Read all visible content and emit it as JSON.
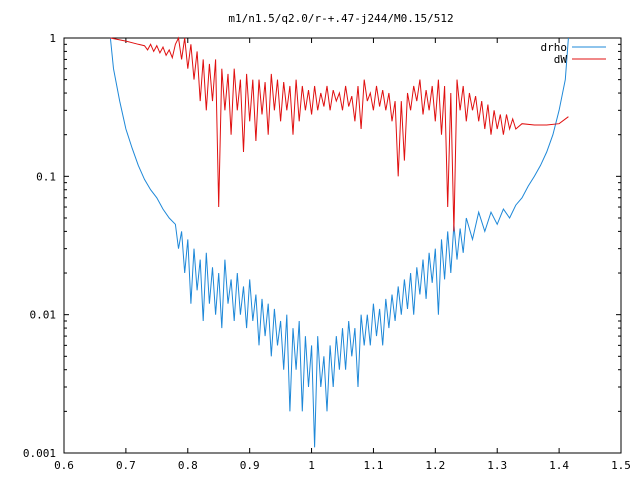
{
  "chart_data": {
    "type": "line",
    "title": "m1/n1.5/q2.0/r-+.47-j244/M0.15/512",
    "xlabel": "",
    "ylabel": "",
    "xlim": [
      0.6,
      1.5
    ],
    "ylim": [
      0.001,
      1
    ],
    "y_scale": "log",
    "grid": false,
    "legend_position": "top-right",
    "x_ticks": [
      "0.6",
      "0.7",
      "0.8",
      "0.9",
      "1",
      "1.1",
      "1.2",
      "1.3",
      "1.4",
      "1.5"
    ],
    "y_ticks": [
      "0.001",
      "0.01",
      "0.1",
      "1"
    ],
    "series": [
      {
        "name": "drho",
        "color": "#1e88d8",
        "points": [
          [
            0.675,
            1.0
          ],
          [
            0.68,
            0.6
          ],
          [
            0.69,
            0.35
          ],
          [
            0.7,
            0.22
          ],
          [
            0.71,
            0.16
          ],
          [
            0.72,
            0.12
          ],
          [
            0.73,
            0.095
          ],
          [
            0.74,
            0.08
          ],
          [
            0.75,
            0.07
          ],
          [
            0.76,
            0.058
          ],
          [
            0.77,
            0.05
          ],
          [
            0.78,
            0.045
          ],
          [
            0.785,
            0.03
          ],
          [
            0.79,
            0.04
          ],
          [
            0.795,
            0.02
          ],
          [
            0.8,
            0.035
          ],
          [
            0.805,
            0.012
          ],
          [
            0.81,
            0.03
          ],
          [
            0.815,
            0.015
          ],
          [
            0.82,
            0.025
          ],
          [
            0.825,
            0.009
          ],
          [
            0.83,
            0.028
          ],
          [
            0.835,
            0.012
          ],
          [
            0.84,
            0.022
          ],
          [
            0.845,
            0.01
          ],
          [
            0.85,
            0.02
          ],
          [
            0.855,
            0.008
          ],
          [
            0.86,
            0.025
          ],
          [
            0.865,
            0.012
          ],
          [
            0.87,
            0.018
          ],
          [
            0.875,
            0.009
          ],
          [
            0.88,
            0.02
          ],
          [
            0.885,
            0.01
          ],
          [
            0.89,
            0.016
          ],
          [
            0.895,
            0.008
          ],
          [
            0.9,
            0.018
          ],
          [
            0.905,
            0.009
          ],
          [
            0.91,
            0.014
          ],
          [
            0.915,
            0.006
          ],
          [
            0.92,
            0.013
          ],
          [
            0.925,
            0.007
          ],
          [
            0.93,
            0.012
          ],
          [
            0.935,
            0.005
          ],
          [
            0.94,
            0.011
          ],
          [
            0.945,
            0.006
          ],
          [
            0.95,
            0.009
          ],
          [
            0.955,
            0.004
          ],
          [
            0.96,
            0.01
          ],
          [
            0.965,
            0.002
          ],
          [
            0.97,
            0.008
          ],
          [
            0.975,
            0.004
          ],
          [
            0.98,
            0.009
          ],
          [
            0.985,
            0.002
          ],
          [
            0.99,
            0.007
          ],
          [
            0.995,
            0.003
          ],
          [
            1.0,
            0.006
          ],
          [
            1.005,
            0.0011
          ],
          [
            1.01,
            0.007
          ],
          [
            1.015,
            0.003
          ],
          [
            1.02,
            0.005
          ],
          [
            1.025,
            0.002
          ],
          [
            1.03,
            0.006
          ],
          [
            1.035,
            0.003
          ],
          [
            1.04,
            0.007
          ],
          [
            1.045,
            0.004
          ],
          [
            1.05,
            0.008
          ],
          [
            1.055,
            0.004
          ],
          [
            1.06,
            0.009
          ],
          [
            1.065,
            0.005
          ],
          [
            1.07,
            0.008
          ],
          [
            1.075,
            0.003
          ],
          [
            1.08,
            0.01
          ],
          [
            1.085,
            0.006
          ],
          [
            1.09,
            0.01
          ],
          [
            1.095,
            0.006
          ],
          [
            1.1,
            0.012
          ],
          [
            1.105,
            0.007
          ],
          [
            1.11,
            0.011
          ],
          [
            1.115,
            0.006
          ],
          [
            1.12,
            0.013
          ],
          [
            1.125,
            0.008
          ],
          [
            1.13,
            0.014
          ],
          [
            1.135,
            0.009
          ],
          [
            1.14,
            0.016
          ],
          [
            1.145,
            0.01
          ],
          [
            1.15,
            0.018
          ],
          [
            1.155,
            0.011
          ],
          [
            1.16,
            0.02
          ],
          [
            1.165,
            0.01
          ],
          [
            1.17,
            0.022
          ],
          [
            1.175,
            0.014
          ],
          [
            1.18,
            0.025
          ],
          [
            1.185,
            0.013
          ],
          [
            1.19,
            0.028
          ],
          [
            1.195,
            0.017
          ],
          [
            1.2,
            0.03
          ],
          [
            1.205,
            0.01
          ],
          [
            1.21,
            0.035
          ],
          [
            1.215,
            0.018
          ],
          [
            1.22,
            0.04
          ],
          [
            1.225,
            0.02
          ],
          [
            1.23,
            0.045
          ],
          [
            1.235,
            0.025
          ],
          [
            1.24,
            0.042
          ],
          [
            1.245,
            0.028
          ],
          [
            1.25,
            0.05
          ],
          [
            1.26,
            0.035
          ],
          [
            1.27,
            0.055
          ],
          [
            1.28,
            0.04
          ],
          [
            1.29,
            0.055
          ],
          [
            1.3,
            0.045
          ],
          [
            1.31,
            0.058
          ],
          [
            1.32,
            0.05
          ],
          [
            1.33,
            0.062
          ],
          [
            1.34,
            0.07
          ],
          [
            1.35,
            0.085
          ],
          [
            1.36,
            0.1
          ],
          [
            1.37,
            0.12
          ],
          [
            1.38,
            0.15
          ],
          [
            1.39,
            0.2
          ],
          [
            1.4,
            0.3
          ],
          [
            1.41,
            0.5
          ],
          [
            1.415,
            1.0
          ]
        ]
      },
      {
        "name": "dW",
        "color": "#e01010",
        "points": [
          [
            0.675,
            1.0
          ],
          [
            0.7,
            0.95
          ],
          [
            0.72,
            0.9
          ],
          [
            0.73,
            0.88
          ],
          [
            0.735,
            0.82
          ],
          [
            0.74,
            0.9
          ],
          [
            0.745,
            0.8
          ],
          [
            0.75,
            0.88
          ],
          [
            0.755,
            0.78
          ],
          [
            0.76,
            0.86
          ],
          [
            0.765,
            0.75
          ],
          [
            0.77,
            0.82
          ],
          [
            0.775,
            0.72
          ],
          [
            0.78,
            0.9
          ],
          [
            0.785,
            1.0
          ],
          [
            0.79,
            0.7
          ],
          [
            0.795,
            1.0
          ],
          [
            0.8,
            0.6
          ],
          [
            0.805,
            0.9
          ],
          [
            0.81,
            0.5
          ],
          [
            0.815,
            0.8
          ],
          [
            0.82,
            0.35
          ],
          [
            0.825,
            0.7
          ],
          [
            0.83,
            0.3
          ],
          [
            0.835,
            0.65
          ],
          [
            0.84,
            0.35
          ],
          [
            0.845,
            0.7
          ],
          [
            0.85,
            0.06
          ],
          [
            0.855,
            0.6
          ],
          [
            0.86,
            0.3
          ],
          [
            0.865,
            0.55
          ],
          [
            0.87,
            0.2
          ],
          [
            0.875,
            0.6
          ],
          [
            0.88,
            0.3
          ],
          [
            0.885,
            0.5
          ],
          [
            0.89,
            0.15
          ],
          [
            0.895,
            0.55
          ],
          [
            0.9,
            0.25
          ],
          [
            0.905,
            0.5
          ],
          [
            0.91,
            0.18
          ],
          [
            0.915,
            0.5
          ],
          [
            0.92,
            0.28
          ],
          [
            0.925,
            0.48
          ],
          [
            0.93,
            0.2
          ],
          [
            0.935,
            0.55
          ],
          [
            0.94,
            0.3
          ],
          [
            0.945,
            0.5
          ],
          [
            0.95,
            0.25
          ],
          [
            0.955,
            0.48
          ],
          [
            0.96,
            0.3
          ],
          [
            0.965,
            0.45
          ],
          [
            0.97,
            0.2
          ],
          [
            0.975,
            0.5
          ],
          [
            0.98,
            0.25
          ],
          [
            0.985,
            0.45
          ],
          [
            0.99,
            0.3
          ],
          [
            0.995,
            0.42
          ],
          [
            1.0,
            0.28
          ],
          [
            1.005,
            0.45
          ],
          [
            1.01,
            0.3
          ],
          [
            1.015,
            0.4
          ],
          [
            1.02,
            0.32
          ],
          [
            1.025,
            0.45
          ],
          [
            1.03,
            0.3
          ],
          [
            1.035,
            0.42
          ],
          [
            1.04,
            0.35
          ],
          [
            1.045,
            0.4
          ],
          [
            1.05,
            0.3
          ],
          [
            1.055,
            0.45
          ],
          [
            1.06,
            0.32
          ],
          [
            1.065,
            0.38
          ],
          [
            1.07,
            0.25
          ],
          [
            1.075,
            0.45
          ],
          [
            1.08,
            0.22
          ],
          [
            1.085,
            0.5
          ],
          [
            1.09,
            0.35
          ],
          [
            1.095,
            0.4
          ],
          [
            1.1,
            0.3
          ],
          [
            1.105,
            0.45
          ],
          [
            1.11,
            0.32
          ],
          [
            1.115,
            0.42
          ],
          [
            1.12,
            0.3
          ],
          [
            1.125,
            0.4
          ],
          [
            1.13,
            0.25
          ],
          [
            1.135,
            0.35
          ],
          [
            1.14,
            0.1
          ],
          [
            1.145,
            0.35
          ],
          [
            1.15,
            0.13
          ],
          [
            1.155,
            0.4
          ],
          [
            1.16,
            0.3
          ],
          [
            1.165,
            0.45
          ],
          [
            1.17,
            0.35
          ],
          [
            1.175,
            0.5
          ],
          [
            1.18,
            0.28
          ],
          [
            1.185,
            0.42
          ],
          [
            1.19,
            0.3
          ],
          [
            1.195,
            0.45
          ],
          [
            1.2,
            0.25
          ],
          [
            1.205,
            0.5
          ],
          [
            1.21,
            0.2
          ],
          [
            1.215,
            0.45
          ],
          [
            1.22,
            0.06
          ],
          [
            1.225,
            0.4
          ],
          [
            1.23,
            0.04
          ],
          [
            1.235,
            0.5
          ],
          [
            1.24,
            0.3
          ],
          [
            1.245,
            0.45
          ],
          [
            1.25,
            0.25
          ],
          [
            1.255,
            0.4
          ],
          [
            1.26,
            0.3
          ],
          [
            1.265,
            0.38
          ],
          [
            1.27,
            0.25
          ],
          [
            1.275,
            0.35
          ],
          [
            1.28,
            0.22
          ],
          [
            1.285,
            0.33
          ],
          [
            1.29,
            0.2
          ],
          [
            1.295,
            0.3
          ],
          [
            1.3,
            0.22
          ],
          [
            1.305,
            0.28
          ],
          [
            1.31,
            0.2
          ],
          [
            1.315,
            0.28
          ],
          [
            1.32,
            0.22
          ],
          [
            1.325,
            0.26
          ],
          [
            1.33,
            0.22
          ],
          [
            1.34,
            0.24
          ],
          [
            1.36,
            0.235
          ],
          [
            1.38,
            0.235
          ],
          [
            1.4,
            0.24
          ],
          [
            1.415,
            0.27
          ]
        ]
      }
    ]
  }
}
